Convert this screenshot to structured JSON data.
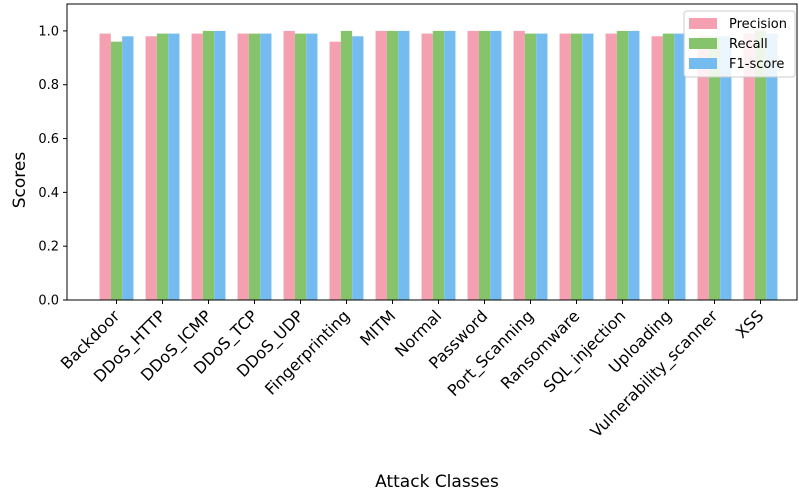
{
  "chart_data": {
    "type": "bar",
    "title": "",
    "xlabel": "Attack Classes",
    "ylabel": "Scores",
    "ylim": [
      0,
      1.1
    ],
    "yticks": [
      "0.0",
      "0.2",
      "0.4",
      "0.6",
      "0.8",
      "1.0"
    ],
    "grid": false,
    "legend_position": "top-right",
    "categories": [
      "Backdoor",
      "DDoS_HTTP",
      "DDoS_ICMP",
      "DDoS_TCP",
      "DDoS_UDP",
      "Fingerprinting",
      "MITM",
      "Normal",
      "Password",
      "Port_Scanning",
      "Ransomware",
      "SQL_injection",
      "Uploading",
      "Vulnerability_scanner",
      "XSS"
    ],
    "series": [
      {
        "name": "Precision",
        "color": "#f4a0b0",
        "values": [
          0.99,
          0.98,
          0.99,
          0.99,
          1.0,
          0.96,
          1.0,
          0.99,
          1.0,
          1.0,
          0.99,
          0.99,
          0.98,
          0.98,
          0.99
        ]
      },
      {
        "name": "Recall",
        "color": "#86c46b",
        "values": [
          0.96,
          0.99,
          1.0,
          0.99,
          0.99,
          1.0,
          1.0,
          1.0,
          1.0,
          0.99,
          0.99,
          1.0,
          0.99,
          0.98,
          1.0
        ]
      },
      {
        "name": "F1-score",
        "color": "#74bcef",
        "values": [
          0.98,
          0.99,
          1.0,
          0.99,
          0.99,
          0.98,
          1.0,
          1.0,
          1.0,
          0.99,
          0.99,
          1.0,
          0.99,
          0.98,
          0.99
        ]
      }
    ]
  }
}
